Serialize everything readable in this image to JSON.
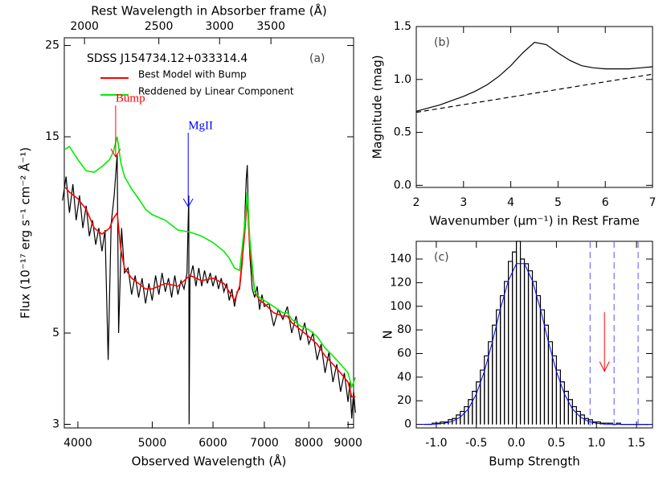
{
  "chart_data": [
    {
      "type": "line",
      "label": "(a)",
      "title": "SDSS J154734.12+033314.4",
      "xlabel": "Observed Wavelength (Å)",
      "ylabel": "Flux (10⁻¹⁷ erg s⁻¹ cm⁻² Å⁻¹)",
      "x2label": "Rest Wavelength in Absorber frame (Å)",
      "xscale": "log",
      "yscale": "log",
      "xlim": [
        3840,
        9150
      ],
      "xticks": [
        4000,
        5000,
        6000,
        7000,
        8000,
        9000
      ],
      "x2ticks": [
        {
          "value": 4080,
          "label": "2000"
        },
        {
          "value": 5100,
          "label": "2500"
        },
        {
          "value": 6120,
          "label": "3000"
        },
        {
          "value": 7140,
          "label": "3500"
        }
      ],
      "ylim": [
        2.94,
        26.1
      ],
      "yticks": [
        3,
        5,
        15,
        25
      ],
      "series": [
        {
          "color": "#000000",
          "x": [
            3820,
            3860,
            3900,
            3940,
            3980,
            4020,
            4060,
            4100,
            4140,
            4180,
            4220,
            4260,
            4300,
            4340,
            4380,
            4420,
            4460,
            4500,
            4520,
            4560,
            4600,
            4650,
            4700,
            4750,
            4800,
            4850,
            4900,
            4950,
            5000,
            5050,
            5100,
            5150,
            5200,
            5250,
            5300,
            5350,
            5400,
            5450,
            5500,
            5550,
            5580,
            5585,
            5600,
            5650,
            5700,
            5750,
            5800,
            5850,
            5900,
            5950,
            6000,
            6050,
            6100,
            6150,
            6200,
            6250,
            6300,
            6350,
            6400,
            6450,
            6500,
            6550,
            6600,
            6630,
            6650,
            6670,
            6700,
            6750,
            6800,
            6850,
            6900,
            6950,
            7000,
            7100,
            7200,
            7300,
            7400,
            7500,
            7600,
            7700,
            7800,
            7900,
            8000,
            8100,
            8200,
            8300,
            8400,
            8500,
            8600,
            8700,
            8800,
            8900,
            9000,
            9050,
            9100,
            9150,
            9200
          ],
          "values": [
            10.5,
            12.0,
            9.8,
            11.5,
            9.4,
            10.8,
            9.0,
            10.2,
            8.6,
            9.4,
            8.2,
            9.0,
            7.9,
            8.9,
            4.3,
            9.2,
            10.8,
            13.6,
            5.0,
            9.0,
            7.0,
            7.2,
            6.2,
            6.9,
            6.1,
            6.8,
            5.9,
            6.6,
            6.0,
            6.9,
            6.2,
            7.0,
            6.3,
            6.8,
            6.1,
            6.9,
            6.2,
            6.7,
            6.4,
            7.0,
            10.8,
            3.0,
            6.8,
            7.3,
            6.5,
            7.2,
            6.5,
            7.1,
            6.6,
            7.0,
            6.5,
            6.9,
            6.4,
            6.8,
            6.3,
            6.6,
            6.0,
            6.4,
            5.8,
            6.3,
            6.4,
            7.4,
            9.5,
            11.8,
            12.8,
            10.2,
            7.8,
            6.4,
            6.1,
            6.5,
            5.7,
            6.2,
            5.8,
            5.9,
            5.2,
            5.7,
            5.4,
            5.8,
            5.0,
            5.5,
            4.8,
            5.3,
            4.7,
            5.0,
            4.3,
            4.7,
            4.0,
            4.5,
            3.8,
            4.2,
            3.6,
            4.0,
            3.4,
            3.8,
            3.1,
            3.6,
            3.2
          ]
        },
        {
          "name": "Best Model with Bump",
          "color": "#ff0000",
          "x": [
            3850,
            3900,
            4000,
            4100,
            4200,
            4300,
            4400,
            4450,
            4500,
            4550,
            4600,
            4700,
            4800,
            4900,
            5000,
            5200,
            5400,
            5600,
            5800,
            6000,
            6200,
            6300,
            6400,
            6500,
            6600,
            6650,
            6700,
            6800,
            6900,
            7000,
            7200,
            7400,
            7500,
            7600,
            7800,
            8000,
            8200,
            8400,
            8600,
            8800,
            9000,
            9100,
            9200
          ],
          "values": [
            11.3,
            11.0,
            10.6,
            10.0,
            9.0,
            8.7,
            9.0,
            9.5,
            9.8,
            8.0,
            7.2,
            6.8,
            6.6,
            6.4,
            6.4,
            6.6,
            6.5,
            6.9,
            6.7,
            6.8,
            6.6,
            6.3,
            6.0,
            6.5,
            8.8,
            10.6,
            8.0,
            6.3,
            6.0,
            5.9,
            5.6,
            5.5,
            5.5,
            5.3,
            5.1,
            4.9,
            4.7,
            4.4,
            4.2,
            4.0,
            3.8,
            3.5,
            3.5
          ]
        },
        {
          "name": "Reddened by Linear Component",
          "color": "#00ee00",
          "x": [
            3850,
            3900,
            4000,
            4100,
            4200,
            4300,
            4400,
            4450,
            4500,
            4550,
            4600,
            4700,
            4800,
            4900,
            5000,
            5200,
            5400,
            5600,
            5800,
            6000,
            6200,
            6300,
            6400,
            6500,
            6600,
            6650,
            6700,
            6800,
            6900,
            7000,
            7200,
            7400,
            7500,
            7600,
            7800,
            8000,
            8200,
            8400,
            8600,
            8800,
            9000,
            9100,
            9200
          ],
          "values": [
            14.0,
            14.2,
            13.2,
            12.4,
            12.3,
            12.7,
            13.2,
            13.8,
            15.0,
            13.0,
            12.0,
            11.2,
            10.6,
            10.0,
            9.7,
            9.4,
            8.9,
            8.8,
            8.6,
            8.3,
            7.9,
            7.6,
            7.2,
            7.1,
            9.2,
            11.0,
            8.5,
            6.3,
            6.1,
            6.0,
            5.8,
            5.6,
            5.6,
            5.4,
            5.2,
            5.1,
            4.9,
            4.6,
            4.4,
            4.2,
            4.0,
            3.7,
            3.9
          ]
        }
      ],
      "annotations": [
        {
          "text": "Bump",
          "x": 4480,
          "color": "#ff0000"
        },
        {
          "text": "MgII",
          "x": 5570,
          "color": "#0000ff"
        }
      ]
    },
    {
      "type": "line",
      "label": "(b)",
      "xlabel": "Wavenumber (μm⁻¹) in Rest Frame",
      "ylabel": "Magnitude (mag)",
      "xlim": [
        2,
        7
      ],
      "xticks": [
        2,
        3,
        4,
        5,
        6,
        7
      ],
      "ylim": [
        -0.02,
        1.5
      ],
      "yticks": [
        {
          "value": 0,
          "label": "0.0"
        },
        {
          "value": 0.5,
          "label": "0.5"
        },
        {
          "value": 1,
          "label": "1.0"
        },
        {
          "value": 1.5,
          "label": "1.5"
        }
      ],
      "series": [
        {
          "color": "#000000",
          "x": [
            2,
            2.25,
            2.5,
            2.75,
            3,
            3.25,
            3.5,
            3.75,
            4,
            4.25,
            4.5,
            4.75,
            5,
            5.25,
            5.5,
            5.75,
            6,
            6.25,
            6.5,
            6.75,
            7
          ],
          "values": [
            0.7,
            0.73,
            0.76,
            0.8,
            0.84,
            0.89,
            0.95,
            1.03,
            1.13,
            1.25,
            1.35,
            1.33,
            1.25,
            1.18,
            1.13,
            1.11,
            1.1,
            1.1,
            1.1,
            1.11,
            1.12
          ]
        },
        {
          "color": "#000000",
          "linestyle": "dashed",
          "x": [
            2,
            7
          ],
          "values": [
            0.69,
            1.05
          ]
        }
      ]
    },
    {
      "type": "histogram",
      "label": "(c)",
      "xlabel": "Bump Strength",
      "ylabel": "N",
      "color": "#000000",
      "xlim": [
        -1.25,
        1.7
      ],
      "xticks": [
        {
          "value": -1,
          "label": "-1.0"
        },
        {
          "value": -0.5,
          "label": "-0.5"
        },
        {
          "value": 0,
          "label": "0.0"
        },
        {
          "value": 0.5,
          "label": "0.5"
        },
        {
          "value": 1,
          "label": "1.0"
        },
        {
          "value": 1.5,
          "label": "1.5"
        }
      ],
      "ylim": [
        -3,
        155
      ],
      "yticks": [
        0,
        20,
        40,
        60,
        80,
        100,
        120,
        140
      ],
      "bins": [
        -1.15,
        -1.1,
        -1.05,
        -1,
        -0.95,
        -0.9,
        -0.85,
        -0.8,
        -0.75,
        -0.7,
        -0.65,
        -0.6,
        -0.55,
        -0.5,
        -0.45,
        -0.4,
        -0.35,
        -0.3,
        -0.25,
        -0.2,
        -0.15,
        -0.1,
        -0.05,
        0,
        0.05,
        0.1,
        0.15,
        0.2,
        0.25,
        0.3,
        0.35,
        0.4,
        0.45,
        0.5,
        0.55,
        0.6,
        0.65,
        0.7,
        0.75,
        0.8,
        0.85,
        0.9,
        0.95,
        1,
        1.05,
        1.1,
        1.15,
        1.2,
        1.25,
        1.3,
        1.35,
        1.4,
        1.45,
        1.5,
        1.55,
        1.6,
        1.65
      ],
      "values": [
        0,
        0,
        1,
        1,
        2,
        2,
        4,
        5,
        8,
        11,
        15,
        21,
        28,
        36,
        46,
        58,
        70,
        84,
        97,
        109,
        121,
        138,
        146,
        155,
        140,
        136,
        130,
        121,
        109,
        97,
        84,
        70,
        58,
        46,
        36,
        28,
        21,
        15,
        11,
        8,
        5,
        4,
        2,
        2,
        1,
        1,
        1,
        0,
        1,
        0,
        0,
        0,
        0,
        0,
        0,
        0
      ],
      "curve": {
        "color": "#0000ff",
        "x": [
          -1.2,
          -1.1,
          -1,
          -0.9,
          -0.8,
          -0.7,
          -0.6,
          -0.5,
          -0.4,
          -0.3,
          -0.2,
          -0.1,
          0,
          0.1,
          0.2,
          0.3,
          0.4,
          0.5,
          0.6,
          0.7,
          0.8,
          0.9,
          1,
          1.1,
          1.2,
          1.3,
          1.4,
          1.5,
          1.6,
          1.7
        ],
        "values": [
          0,
          0.1,
          0.3,
          0.9,
          2.5,
          6.1,
          13.1,
          25.7,
          44.8,
          69.9,
          97.5,
          121.7,
          136.1,
          136.1,
          121.7,
          97.5,
          69.9,
          44.8,
          25.7,
          13.1,
          6.1,
          2.5,
          0.9,
          0.3,
          0.1,
          0,
          0,
          0,
          0,
          0
        ]
      },
      "vlines": [
        0.92,
        1.22,
        1.52
      ],
      "vline_color": "#5555ff",
      "arrow": {
        "x": 1.1,
        "y": [
          95,
          45
        ],
        "color": "#ff0000"
      }
    }
  ]
}
